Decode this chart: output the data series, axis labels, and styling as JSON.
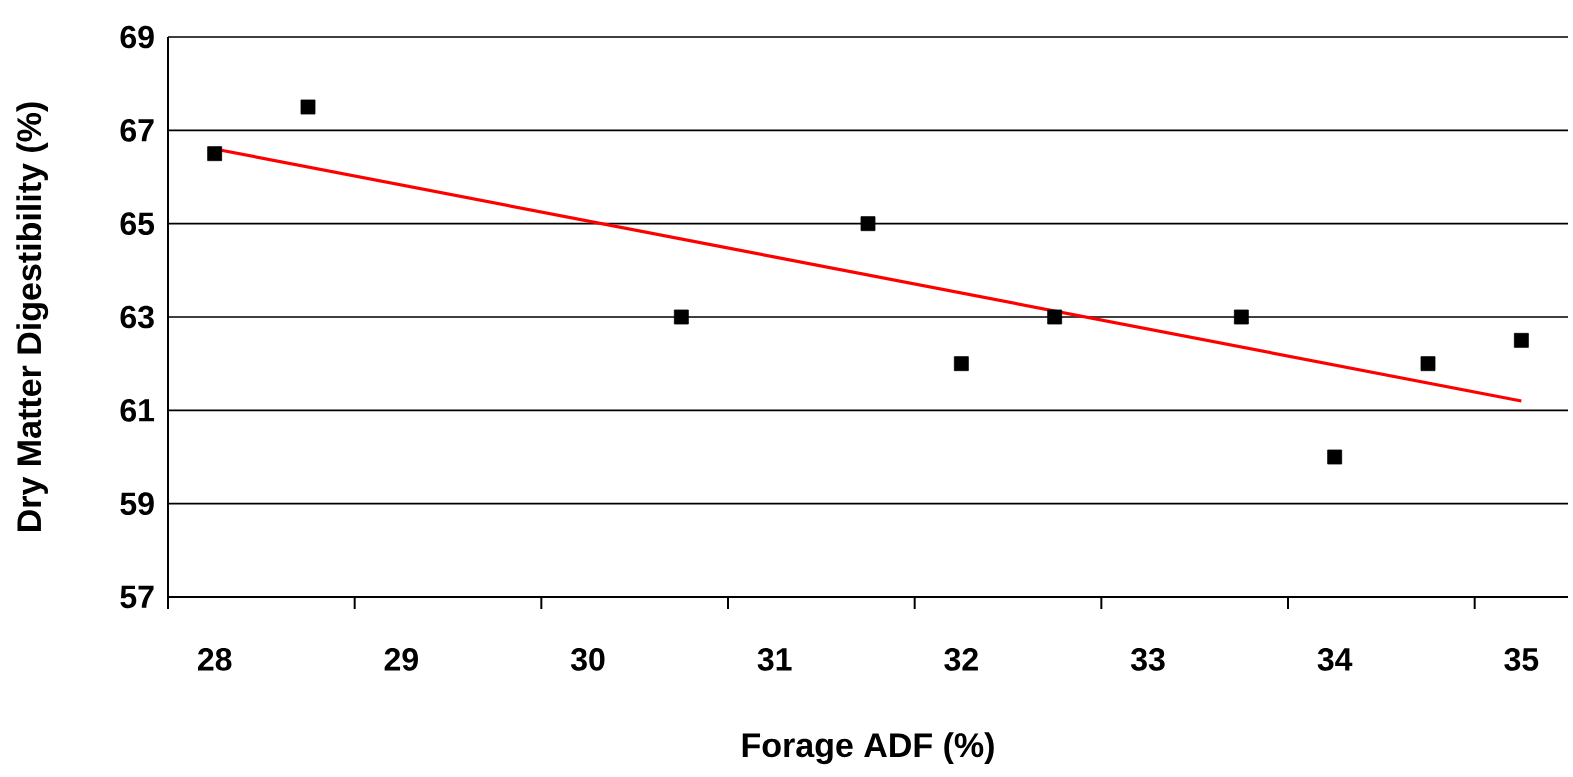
{
  "chart_data": {
    "type": "scatter",
    "xlabel": "Forage ADF (%)",
    "ylabel": "Dry Matter Digestibility (%)",
    "xlim": [
      27.75,
      35.25
    ],
    "ylim": [
      57,
      69
    ],
    "xticks": [
      {
        "value": 27.75,
        "label": null
      },
      {
        "value": 28,
        "label": "28"
      },
      {
        "value": 28.75,
        "label": null
      },
      {
        "value": 29,
        "label": "29"
      },
      {
        "value": 29.75,
        "label": null
      },
      {
        "value": 30,
        "label": "30"
      },
      {
        "value": 30.75,
        "label": null
      },
      {
        "value": 31,
        "label": "31"
      },
      {
        "value": 31.75,
        "label": null
      },
      {
        "value": 32,
        "label": "32"
      },
      {
        "value": 32.75,
        "label": null
      },
      {
        "value": 33,
        "label": "33"
      },
      {
        "value": 33.75,
        "label": null
      },
      {
        "value": 34,
        "label": "34"
      },
      {
        "value": 34.75,
        "label": null
      },
      {
        "value": 35,
        "label": "35"
      }
    ],
    "yticks": [
      57,
      59,
      61,
      63,
      65,
      67,
      69
    ],
    "grid": "y",
    "series": [
      {
        "marker": "square",
        "color": "#000000",
        "x": [
          28,
          28.5,
          30.5,
          31.5,
          32,
          32.5,
          33.5,
          34,
          34.5,
          35
        ],
        "values": [
          66.5,
          67.5,
          63,
          65,
          62,
          63,
          63,
          60,
          62,
          62.5
        ]
      },
      {
        "type": "line",
        "marker": "none",
        "color": "#ff0000",
        "x": [
          28,
          35
        ],
        "values": [
          66.6,
          61.2
        ]
      }
    ]
  }
}
